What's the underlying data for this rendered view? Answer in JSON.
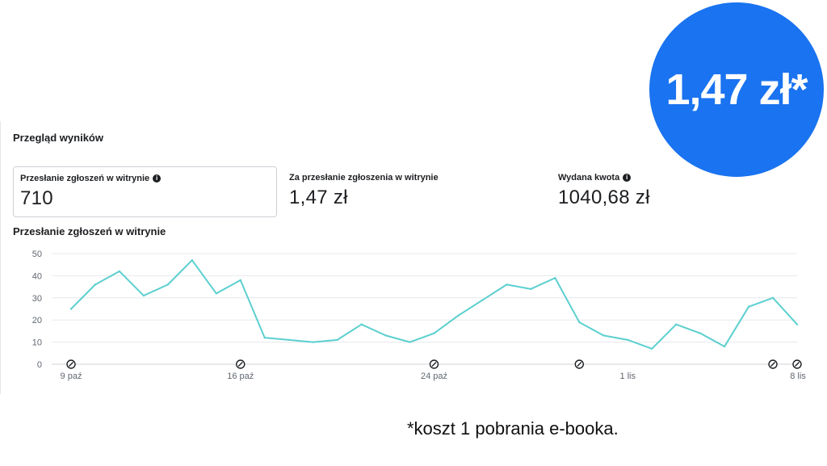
{
  "overview": {
    "title": "Przegląd wyników",
    "metrics": [
      {
        "label": "Przesłanie zgłoszeń w witrynie",
        "value": "710",
        "info_icon": "info-icon",
        "selected": true
      },
      {
        "label": "Za przesłanie zgłoszenia w witrynie",
        "value": "1,47 zł",
        "info_icon": null,
        "selected": false
      },
      {
        "label": "Wydana kwota",
        "value": "1040,68 zł",
        "info_icon": "info-icon",
        "selected": false
      }
    ]
  },
  "chart_data": {
    "type": "line",
    "title": "Przesłanie zgłoszeń w witrynie",
    "xlabel": "",
    "ylabel": "",
    "x": [
      "2023-10-09",
      "2023-10-10",
      "2023-10-11",
      "2023-10-12",
      "2023-10-13",
      "2023-10-14",
      "2023-10-15",
      "2023-10-16",
      "2023-10-17",
      "2023-10-18",
      "2023-10-19",
      "2023-10-20",
      "2023-10-21",
      "2023-10-22",
      "2023-10-23",
      "2023-10-24",
      "2023-10-25",
      "2023-10-26",
      "2023-10-27",
      "2023-10-28",
      "2023-10-29",
      "2023-10-30",
      "2023-10-31",
      "2023-11-01",
      "2023-11-02",
      "2023-11-03",
      "2023-11-04",
      "2023-11-05",
      "2023-11-06",
      "2023-11-07",
      "2023-11-08"
    ],
    "values": [
      25,
      36,
      42,
      31,
      36,
      47,
      32,
      38,
      12,
      11,
      10,
      11,
      18,
      13,
      10,
      14,
      22,
      29,
      36,
      34,
      39,
      19,
      13,
      11,
      7,
      18,
      14,
      8,
      26,
      30,
      18
    ],
    "x_tick_labels": [
      {
        "label": "9 paź",
        "at": "2023-10-09"
      },
      {
        "label": "16 paź",
        "at": "2023-10-16"
      },
      {
        "label": "24 paź",
        "at": "2023-10-24"
      },
      {
        "label": "1 lis",
        "at": "2023-11-01"
      },
      {
        "label": "8 lis",
        "at": "2023-11-08"
      }
    ],
    "y_ticks": [
      0,
      10,
      20,
      30,
      40,
      50
    ],
    "ylim": [
      0,
      50
    ],
    "grid": true,
    "legend": "none",
    "line_color": "#5ccfcf",
    "annotation_markers_at": [
      "2023-10-09",
      "2023-10-16",
      "2023-10-24",
      "2023-10-30",
      "2023-11-07",
      "2023-11-08"
    ],
    "annotation_icon": "edit-history-icon"
  },
  "badge": {
    "text": "1,47 zł*",
    "color": "#1a73f0"
  },
  "footnote": "*koszt 1 pobrania e-booka."
}
